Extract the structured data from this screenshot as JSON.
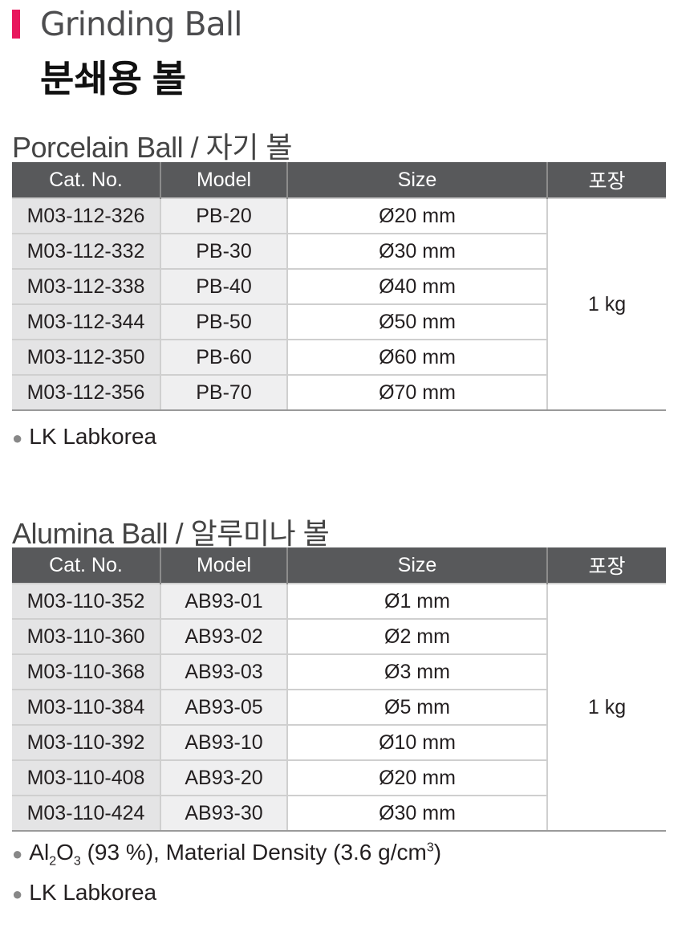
{
  "header": {
    "title_en": "Grinding Ball",
    "title_ko": "분쇄용 볼",
    "accent_color": "#e8175d"
  },
  "columns": [
    "Cat. No.",
    "Model",
    "Size",
    "포장"
  ],
  "porcelain": {
    "title": "Porcelain Ball / 자기 볼",
    "rows": [
      {
        "cat": "M03-112-326",
        "model": "PB-20",
        "size": "Ø20 mm"
      },
      {
        "cat": "M03-112-332",
        "model": "PB-30",
        "size": "Ø30 mm"
      },
      {
        "cat": "M03-112-338",
        "model": "PB-40",
        "size": "Ø40 mm"
      },
      {
        "cat": "M03-112-344",
        "model": "PB-50",
        "size": "Ø50 mm"
      },
      {
        "cat": "M03-112-350",
        "model": "PB-60",
        "size": "Ø60 mm"
      },
      {
        "cat": "M03-112-356",
        "model": "PB-70",
        "size": "Ø70 mm"
      }
    ],
    "packing": "1 kg",
    "notes": [
      "LK Labkorea"
    ]
  },
  "alumina": {
    "title": "Alumina Ball / 알루미나 볼",
    "rows": [
      {
        "cat": "M03-110-352",
        "model": "AB93-01",
        "size": "Ø1 mm"
      },
      {
        "cat": "M03-110-360",
        "model": "AB93-02",
        "size": "Ø2 mm"
      },
      {
        "cat": "M03-110-368",
        "model": "AB93-03",
        "size": "Ø3 mm"
      },
      {
        "cat": "M03-110-384",
        "model": "AB93-05",
        "size": "Ø5 mm"
      },
      {
        "cat": "M03-110-392",
        "model": "AB93-10",
        "size": "Ø10 mm"
      },
      {
        "cat": "M03-110-408",
        "model": "AB93-20",
        "size": "Ø20 mm"
      },
      {
        "cat": "M03-110-424",
        "model": "AB93-30",
        "size": "Ø30 mm"
      }
    ],
    "packing": "1 kg",
    "formula": {
      "al": "Al",
      "sub1": "2",
      "o": "O",
      "sub2": "3",
      "rest": " (93 %), Material Density (3.6 g/cm",
      "sup": "3",
      "close": ")"
    },
    "notes": [
      "LK Labkorea"
    ]
  }
}
